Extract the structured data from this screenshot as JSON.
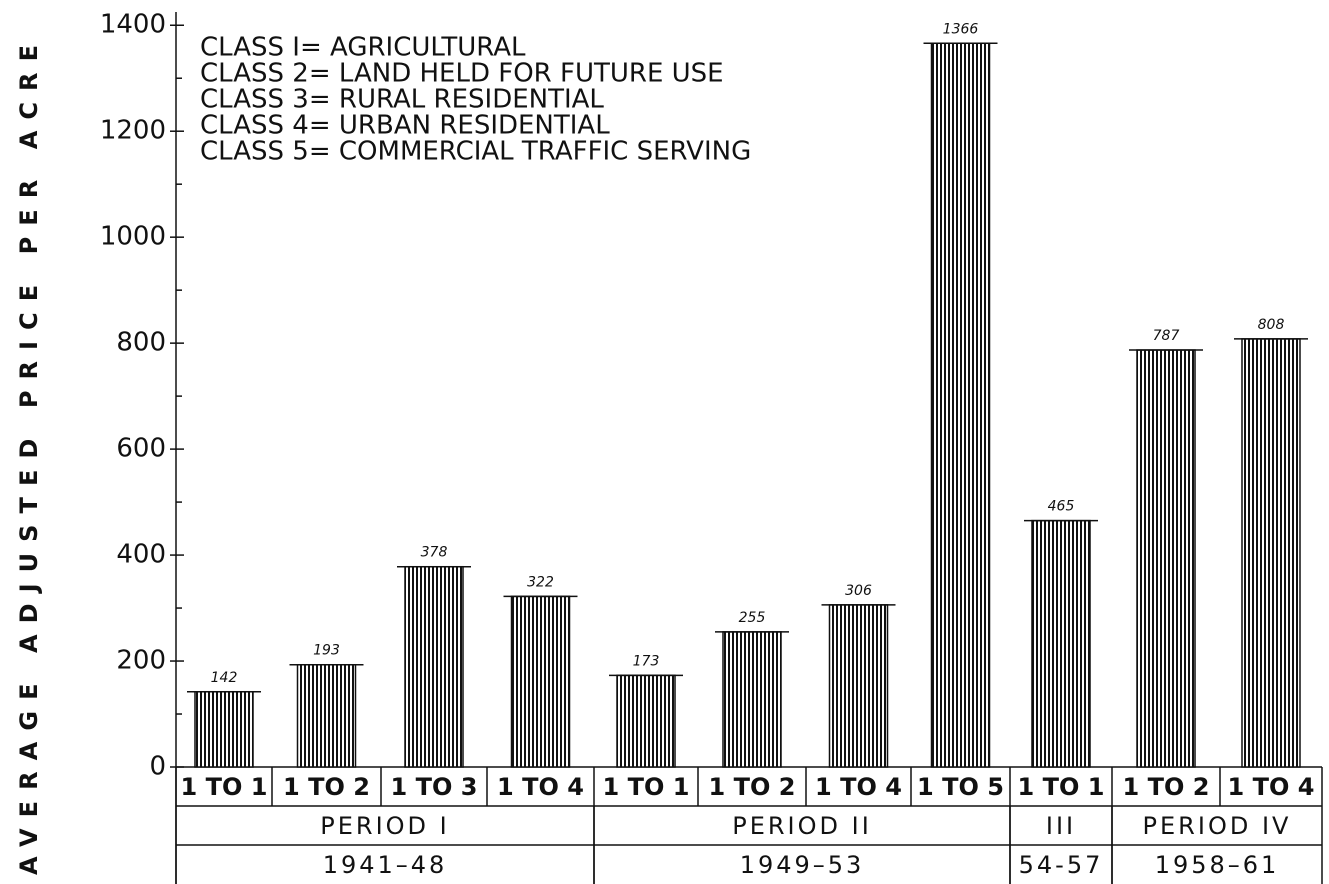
{
  "chart_data": {
    "type": "bar",
    "y_label": "AVERAGE ADJUSTED PRICE PER ACRE",
    "legend": [
      "CLASS I= AGRICULTURAL",
      "CLASS 2= LAND HELD FOR FUTURE USE",
      "CLASS 3= RURAL RESIDENTIAL",
      "CLASS 4= URBAN RESIDENTIAL",
      "CLASS 5= COMMERCIAL TRAFFIC SERVING"
    ],
    "categories": [
      "1 TO 1",
      "1 TO 2",
      "1 TO 3",
      "1 TO 4",
      "1 TO 1",
      "1 TO 2",
      "1 TO 4",
      "1 TO 5",
      "1 TO 1",
      "1 TO 2",
      "1 TO 4"
    ],
    "values": [
      142,
      193,
      378,
      322,
      173,
      255,
      306,
      1366,
      465,
      787,
      808
    ],
    "periods": [
      {
        "label": "PERIOD I",
        "span": 4
      },
      {
        "label": "PERIOD II",
        "span": 4
      },
      {
        "label": "III",
        "span": 1
      },
      {
        "label": "PERIOD IV",
        "span": 2
      }
    ],
    "years": [
      {
        "label": "1941–48",
        "span": 4
      },
      {
        "label": "1949–53",
        "span": 4
      },
      {
        "label": "54-57",
        "span": 1
      },
      {
        "label": "1958–61",
        "span": 2
      }
    ],
    "color": "#111111",
    "ylim": [
      0,
      1425
    ],
    "yticks": [
      0,
      200,
      400,
      600,
      800,
      1000,
      1200,
      1400
    ],
    "minor_yticks": [
      100,
      300,
      500,
      700,
      900,
      1100,
      1300
    ]
  }
}
